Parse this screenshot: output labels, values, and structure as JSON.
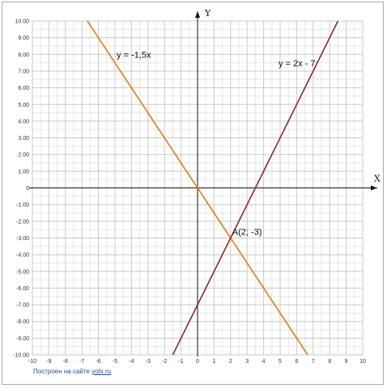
{
  "chart_data": {
    "type": "line",
    "xlim": [
      -10,
      10
    ],
    "ylim": [
      -10,
      10
    ],
    "grid": true,
    "x_axis_label": "X",
    "y_axis_label": "Y",
    "x_ticks": [
      "-10",
      "-9",
      "-8",
      "-7",
      "-6",
      "-5",
      "-4",
      "-3",
      "-2",
      "-1",
      "0",
      "1",
      "2",
      "3",
      "4",
      "5",
      "6",
      "7",
      "8",
      "9",
      "10"
    ],
    "y_ticks": [
      "10.00",
      "9.00",
      "8.00",
      "7.00",
      "6.00",
      "5.00",
      "4.00",
      "3.00",
      "2.00",
      "1.00",
      "0",
      "-1.00",
      "-2.00",
      "-3.00",
      "-4.00",
      "-5.00",
      "-6.00",
      "-7.00",
      "-8.00",
      "-9.00",
      "-10.00"
    ],
    "series": [
      {
        "name": "y = -1,5x",
        "color": "#e07b1a",
        "points": [
          [
            -6.67,
            10
          ],
          [
            6.67,
            -10
          ]
        ]
      },
      {
        "name": "y = 2x - 7",
        "color": "#8b2a2a",
        "points": [
          [
            -1.5,
            -10
          ],
          [
            8.5,
            10
          ]
        ]
      }
    ],
    "annotations": [
      {
        "text": "A(2; -3)",
        "x": 2,
        "y": -3
      }
    ]
  },
  "footer": {
    "prefix": "Построен на сайте",
    "link": "yotx.ru"
  }
}
